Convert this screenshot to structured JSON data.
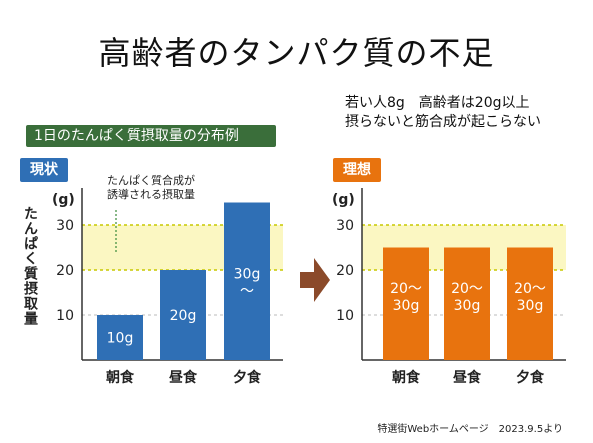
{
  "title": "高齢者のタンパク質の不足",
  "subtitle": "1日のたんぱく質摂取量の分布例",
  "badges": {
    "current": "現状",
    "ideal": "理想"
  },
  "right_note": [
    "若い人8g　高齢者は20g以上",
    "摂らないと筋合成が起こらない"
  ],
  "ylabel": "たんぱく質摂取量",
  "source": "特選街Webホームページ　2023.9.5より",
  "colors": {
    "current_bar": "#2f6fb5",
    "ideal_bar": "#e8730e",
    "target_band": "#fbf7c2",
    "arrow": "#8b4a2a"
  },
  "chart_data": [
    {
      "type": "bar",
      "name": "現状",
      "unit": "(g)",
      "categories": [
        "朝食",
        "昼食",
        "夕食"
      ],
      "values": [
        10,
        20,
        35
      ],
      "bar_labels": [
        [
          "10g"
        ],
        [
          "20g"
        ],
        [
          "30g",
          "〜"
        ]
      ],
      "ylim": [
        0,
        40
      ],
      "yticks": [
        10,
        20,
        30
      ],
      "target_band": [
        20,
        30
      ],
      "annotation": [
        "たんぱく質合成が",
        "誘導される摂取量"
      ]
    },
    {
      "type": "bar",
      "name": "理想",
      "unit": "(g)",
      "categories": [
        "朝食",
        "昼食",
        "夕食"
      ],
      "values": [
        25,
        25,
        25
      ],
      "bar_labels": [
        [
          "20〜",
          "30g"
        ],
        [
          "20〜",
          "30g"
        ],
        [
          "20〜",
          "30g"
        ]
      ],
      "ylim": [
        0,
        40
      ],
      "yticks": [
        10,
        20,
        30
      ],
      "target_band": [
        20,
        30
      ]
    }
  ]
}
